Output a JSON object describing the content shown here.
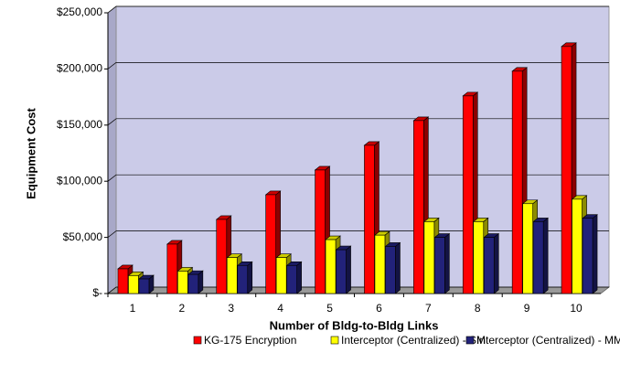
{
  "chart_data": {
    "type": "bar3d",
    "x_label": "Number of Bldg-to-Bldg Links",
    "y_label": "Equipment Cost",
    "categories": [
      "1",
      "2",
      "3",
      "4",
      "5",
      "6",
      "7",
      "8",
      "9",
      "10"
    ],
    "series": [
      {
        "name": "KG-175 Encryption",
        "color": "#ff0000",
        "values": [
          22000,
          44000,
          66000,
          88000,
          110000,
          132000,
          154000,
          176000,
          198000,
          220000
        ]
      },
      {
        "name": "Interceptor (Centralized) - SM",
        "color": "#ffff00",
        "values": [
          16000,
          20000,
          32000,
          32000,
          48000,
          52000,
          64000,
          64000,
          80000,
          84000
        ]
      },
      {
        "name": "Interceptor (Centralized) - MM",
        "color": "#22227a",
        "values": [
          13000,
          17000,
          25000,
          25000,
          39000,
          42000,
          50000,
          50000,
          64000,
          67000
        ]
      }
    ],
    "ylim": [
      0,
      250000
    ],
    "yticks": [
      {
        "value": 0,
        "label": "$-"
      },
      {
        "value": 50000,
        "label": "$50,000"
      },
      {
        "value": 100000,
        "label": "$100,000"
      },
      {
        "value": 150000,
        "label": "$150,000"
      },
      {
        "value": 200000,
        "label": "$200,000"
      },
      {
        "value": 250000,
        "label": "$250,000"
      }
    ],
    "grid": true
  }
}
